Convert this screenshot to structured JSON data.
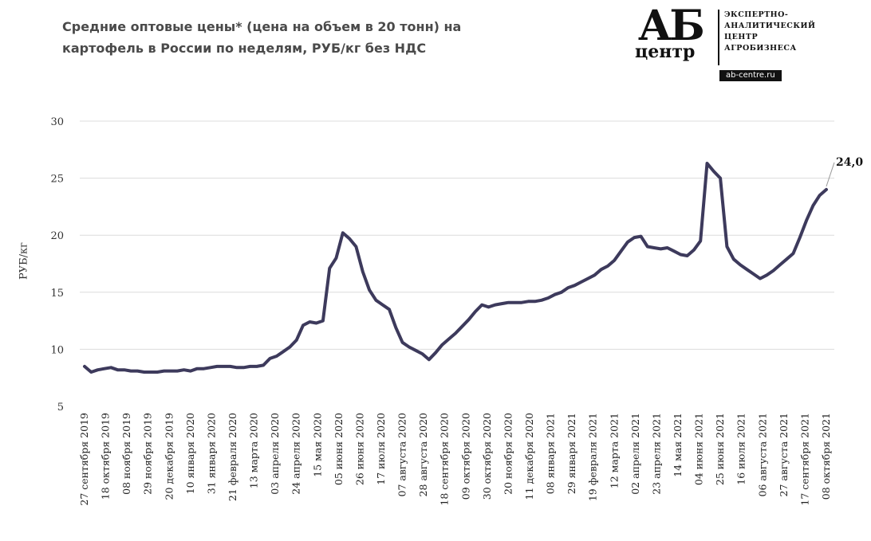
{
  "header": {
    "title_line1": "Средние оптовые цены* (цена на объем в 20 тонн) на",
    "title_line2": "картофель в России по неделям, РУБ/кг без НДС"
  },
  "logo": {
    "mark": "АБ",
    "word": "центр",
    "line1": "ЭКСПЕРТНО-",
    "line2": "АНАЛИТИЧЕСКИЙ",
    "line3": "ЦЕНТР",
    "line4": "АГРОБИЗНЕСА",
    "url": "ab-centre.ru"
  },
  "colors": {
    "line": "#3d3a5c",
    "grid": "#dcdcdc"
  },
  "chart_data": {
    "type": "line",
    "title": "Средние оптовые цены* (цена на объем в 20 тонн) на картофель в России по неделям, РУБ/кг без НДС",
    "xlabel": "",
    "ylabel": "РУБ/кг",
    "ylim": [
      5,
      30
    ],
    "yticks": [
      5,
      10,
      15,
      20,
      25,
      30
    ],
    "grid": true,
    "legend": "none",
    "tick_labels": [
      "27 сентября 2019",
      "18 октября 2019",
      "08 ноября 2019",
      "29 ноября 2019",
      "20 декабря 2019",
      "10 января 2020",
      "31 января 2020",
      "21 февраля 2020",
      "13 марта 2020",
      "03 апреля 2020",
      "24 апреля 2020",
      "15 мая 2020",
      "05 июня 2020",
      "26 июня 2020",
      "17 июля 2020",
      "07 августа 2020",
      "28 августа 2020",
      "18 сентября 2020",
      "09 октября 2020",
      "30 октября 2020",
      "20 ноября 2020",
      "11 декабря 2020",
      "08 января 2021",
      "29 января 2021",
      "19 февраля 2021",
      "12 марта 2021",
      "02 апреля 2021",
      "23 апреля 2021",
      "14 мая 2021",
      "04 июня 2021",
      "25 июня 2021",
      "16 июля 2021",
      "06 августа 2021",
      "27 августа 2021",
      "17 сентября 2021",
      "08 октября 2021"
    ],
    "series": [
      {
        "values": [
          8.5,
          8.0,
          8.2,
          8.3,
          8.4,
          8.2,
          8.2,
          8.1,
          8.1,
          8.0,
          8.0,
          8.0,
          8.1,
          8.1,
          8.1,
          8.2,
          8.1,
          8.3,
          8.3,
          8.4,
          8.5,
          8.5,
          8.5,
          8.4,
          8.4,
          8.5,
          8.5,
          8.6,
          9.2,
          9.4,
          9.8,
          10.2,
          10.8,
          12.1,
          12.4,
          12.3,
          12.5,
          17.1,
          18.0,
          20.2,
          19.7,
          19.0,
          16.8,
          15.2,
          14.3,
          13.9,
          13.5,
          11.9,
          10.6,
          10.2,
          9.9,
          9.6,
          9.1,
          9.7,
          10.4,
          10.9,
          11.4,
          12.0,
          12.6,
          13.3,
          13.9,
          13.7,
          13.9,
          14.0,
          14.1,
          14.1,
          14.1,
          14.2,
          14.2,
          14.3,
          14.5,
          14.8,
          15.0,
          15.4,
          15.6,
          15.9,
          16.2,
          16.5,
          17.0,
          17.3,
          17.8,
          18.6,
          19.4,
          19.8,
          19.9,
          19.0,
          18.9,
          18.8,
          18.9,
          18.6,
          18.3,
          18.2,
          18.7,
          19.5,
          26.3,
          25.6,
          25.0,
          19.0,
          17.9,
          17.4,
          17.0,
          16.6,
          16.2,
          16.5,
          16.9,
          17.4,
          17.9,
          18.4,
          19.8,
          21.3,
          22.6,
          23.5,
          24.0
        ]
      }
    ],
    "annotation": {
      "text": "24,0",
      "target": "last-point"
    }
  }
}
